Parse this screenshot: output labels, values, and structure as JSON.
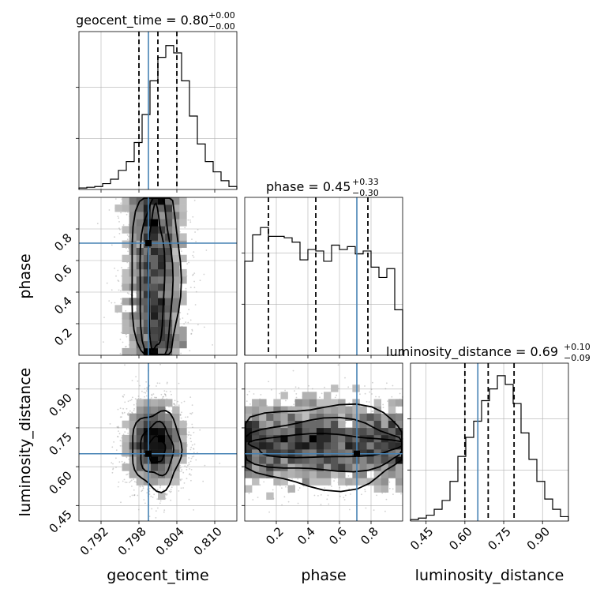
{
  "colors": {
    "truth": "#4682b4",
    "ink": "#000000",
    "grid": "#b0b0b0"
  },
  "chart_data": {
    "type": "corner",
    "parameters": [
      "geocent_time",
      "phase",
      "luminosity_distance"
    ],
    "truths": {
      "geocent_time": 0.7995,
      "phase": 0.71,
      "luminosity_distance": 0.65
    },
    "titles": [
      {
        "name": "geocent_time",
        "text": "geocent_time = 0.80",
        "sup": "+0.00",
        "sub": "−0.00"
      },
      {
        "name": "phase",
        "text": "phase = 0.45",
        "sup": "+0.33",
        "sub": "−0.30"
      },
      {
        "name": "luminosity_distance",
        "text": "luminosity_distance = 0.69",
        "sup": "+0.10",
        "sub": "−0.09"
      }
    ],
    "axes": {
      "geocent_time": {
        "range": [
          0.7885,
          0.8135
        ],
        "ticks": [
          0.792,
          0.798,
          0.804,
          0.81
        ],
        "tick_labels": [
          "0.792",
          "0.798",
          "0.804",
          "0.810"
        ],
        "label": "geocent_time"
      },
      "phase": {
        "range": [
          0.0,
          1.0
        ],
        "ticks": [
          0.2,
          0.4,
          0.6,
          0.8
        ],
        "tick_labels": [
          "0.2",
          "0.4",
          "0.6",
          "0.8"
        ],
        "label": "phase"
      },
      "luminosity_distance": {
        "range": [
          0.39,
          1.0
        ],
        "ticks": [
          0.45,
          0.6,
          0.75,
          0.9
        ],
        "tick_labels": [
          "0.45",
          "0.60",
          "0.75",
          "0.90"
        ],
        "label": "luminosity_distance"
      }
    },
    "quantiles": {
      "geocent_time": [
        0.798,
        0.801,
        0.804
      ],
      "phase": [
        0.15,
        0.45,
        0.78
      ],
      "luminosity_distance": [
        0.6,
        0.69,
        0.79
      ]
    },
    "histograms": {
      "geocent_time": {
        "edges_range": [
          0.7885,
          0.8135
        ],
        "counts": [
          0.01,
          0.015,
          0.02,
          0.04,
          0.07,
          0.13,
          0.19,
          0.32,
          0.51,
          0.74,
          0.9,
          0.98,
          0.93,
          0.74,
          0.5,
          0.31,
          0.19,
          0.12,
          0.06,
          0.02
        ]
      },
      "phase": {
        "edges_range": [
          0.0,
          1.0
        ],
        "counts": [
          0.64,
          0.82,
          0.87,
          0.81,
          0.81,
          0.8,
          0.77,
          0.65,
          0.72,
          0.71,
          0.64,
          0.75,
          0.72,
          0.74,
          0.69,
          0.71,
          0.6,
          0.53,
          0.59,
          0.31
        ]
      },
      "luminosity_distance": {
        "edges_range": [
          0.39,
          1.0
        ],
        "counts": [
          0.01,
          0.02,
          0.04,
          0.08,
          0.14,
          0.27,
          0.44,
          0.57,
          0.68,
          0.82,
          0.9,
          0.99,
          0.93,
          0.8,
          0.6,
          0.42,
          0.27,
          0.15,
          0.08,
          0.03
        ]
      }
    }
  }
}
